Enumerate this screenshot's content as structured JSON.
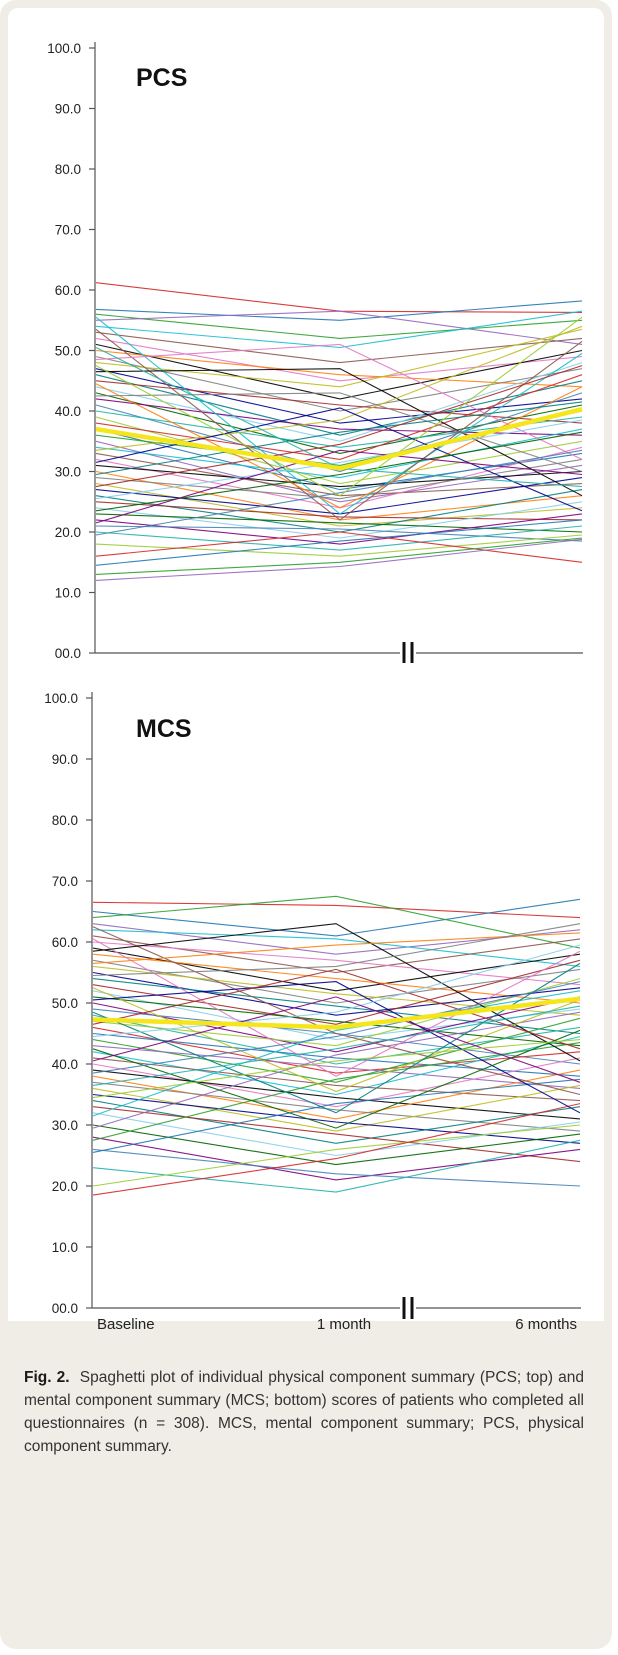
{
  "chart_data": [
    {
      "type": "line",
      "title": "PCS",
      "xlabel": "",
      "ylabel": "",
      "categories": [
        "Baseline",
        "1 month",
        "6 months"
      ],
      "ylim": [
        0,
        100
      ],
      "yticks": [
        "00.0",
        "10.0",
        "20.0",
        "30.0",
        "40.0",
        "50.0",
        "60.0",
        "70.0",
        "80.0",
        "90.0",
        "100.0"
      ],
      "grid": false,
      "axis_break": "between 1 month and 6 months",
      "mean": {
        "values": [
          37.0,
          30.5,
          40.3
        ],
        "color": "#f5e51b"
      },
      "series": [
        {
          "values": [
            61.2,
            56.5,
            56.3
          ]
        },
        {
          "values": [
            56.8,
            55.0,
            58.2
          ]
        },
        {
          "values": [
            56.0,
            52.0,
            55.0
          ]
        },
        {
          "values": [
            55.0,
            56.5,
            51.0
          ]
        },
        {
          "values": [
            54.0,
            50.5,
            56.5
          ]
        },
        {
          "values": [
            53.0,
            48.0,
            52.0
          ]
        },
        {
          "values": [
            52.0,
            45.0,
            49.0
          ]
        },
        {
          "values": [
            51.0,
            42.0,
            50.0
          ]
        },
        {
          "values": [
            50.0,
            46.0,
            44.0
          ]
        },
        {
          "values": [
            49.0,
            40.0,
            47.0
          ]
        },
        {
          "values": [
            48.0,
            44.0,
            53.5
          ]
        },
        {
          "values": [
            47.0,
            38.0,
            42.0
          ]
        },
        {
          "values": [
            46.0,
            36.0,
            45.0
          ]
        },
        {
          "values": [
            45.0,
            41.0,
            38.0
          ]
        },
        {
          "values": [
            44.0,
            35.0,
            48.0
          ]
        },
        {
          "values": [
            43.0,
            33.0,
            41.0
          ]
        },
        {
          "values": [
            42.0,
            37.0,
            36.0
          ]
        },
        {
          "values": [
            41.0,
            30.0,
            43.0
          ]
        },
        {
          "values": [
            40.0,
            34.0,
            39.0
          ]
        },
        {
          "values": [
            39.0,
            28.0,
            35.0
          ]
        },
        {
          "values": [
            38.0,
            32.0,
            46.0
          ]
        },
        {
          "values": [
            37.0,
            27.0,
            33.0
          ]
        },
        {
          "values": [
            36.0,
            31.0,
            40.0
          ]
        },
        {
          "values": [
            35.0,
            25.0,
            31.0
          ]
        },
        {
          "values": [
            34.0,
            29.0,
            37.0
          ]
        },
        {
          "values": [
            33.0,
            26.0,
            28.0
          ]
        },
        {
          "values": [
            32.0,
            24.0,
            34.0
          ]
        },
        {
          "values": [
            31.0,
            27.5,
            30.0
          ]
        },
        {
          "values": [
            30.0,
            22.0,
            26.0
          ]
        },
        {
          "values": [
            29.0,
            25.5,
            32.0
          ]
        },
        {
          "values": [
            28.0,
            21.0,
            24.0
          ]
        },
        {
          "values": [
            27.0,
            23.0,
            29.0
          ]
        },
        {
          "values": [
            26.0,
            20.0,
            27.0
          ]
        },
        {
          "values": [
            25.0,
            22.5,
            22.0
          ]
        },
        {
          "values": [
            24.0,
            19.0,
            25.0
          ]
        },
        {
          "values": [
            23.0,
            21.5,
            20.0
          ]
        },
        {
          "values": [
            22.0,
            18.0,
            23.0
          ]
        },
        {
          "values": [
            21.0,
            20.5,
            18.5
          ]
        },
        {
          "values": [
            20.0,
            17.0,
            21.0
          ]
        },
        {
          "values": [
            18.0,
            16.0,
            19.5
          ]
        },
        {
          "values": [
            16.0,
            20.0,
            15.0
          ]
        },
        {
          "values": [
            14.5,
            18.5,
            22.0
          ]
        },
        {
          "values": [
            13.0,
            15.0,
            19.0
          ]
        },
        {
          "values": [
            12.0,
            14.3,
            18.8
          ]
        },
        {
          "values": [
            55.5,
            23.0,
            49.5
          ]
        },
        {
          "values": [
            53.5,
            22.0,
            51.5
          ]
        },
        {
          "values": [
            48.5,
            51.0,
            32.0
          ]
        },
        {
          "values": [
            46.5,
            47.0,
            26.0
          ]
        },
        {
          "values": [
            44.5,
            24.0,
            44.0
          ]
        },
        {
          "values": [
            42.5,
            43.0,
            30.0
          ]
        },
        {
          "values": [
            33.5,
            38.5,
            54.0
          ]
        },
        {
          "values": [
            31.5,
            40.5,
            23.5
          ]
        },
        {
          "values": [
            29.5,
            36.5,
            41.5
          ]
        },
        {
          "values": [
            27.5,
            34.5,
            47.5
          ]
        },
        {
          "values": [
            25.5,
            31.5,
            38.5
          ]
        },
        {
          "values": [
            23.5,
            29.5,
            36.5
          ]
        },
        {
          "values": [
            21.5,
            33.5,
            29.5
          ]
        },
        {
          "values": [
            19.5,
            26.5,
            33.5
          ]
        },
        {
          "values": [
            50.5,
            30.5,
            27.5
          ]
        },
        {
          "values": [
            47.5,
            26.0,
            55.5
          ]
        }
      ]
    },
    {
      "type": "line",
      "title": "MCS",
      "xlabel": "",
      "ylabel": "",
      "categories": [
        "Baseline",
        "1 month",
        "6 months"
      ],
      "ylim": [
        0,
        100
      ],
      "yticks": [
        "00.0",
        "10.0",
        "20.0",
        "30.0",
        "40.0",
        "50.0",
        "60.0",
        "70.0",
        "80.0",
        "90.0",
        "100.0"
      ],
      "grid": false,
      "axis_break": "between 1 month and 6 months",
      "mean": {
        "values": [
          47.3,
          46.0,
          50.7
        ],
        "color": "#f5e51b"
      },
      "series": [
        {
          "values": [
            66.5,
            66.0,
            64.0
          ]
        },
        {
          "values": [
            65.0,
            61.0,
            67.0
          ]
        },
        {
          "values": [
            64.0,
            67.5,
            59.0
          ]
        },
        {
          "values": [
            63.0,
            58.0,
            62.0
          ]
        },
        {
          "values": [
            62.0,
            60.5,
            56.0
          ]
        },
        {
          "values": [
            61.0,
            55.0,
            60.5
          ]
        },
        {
          "values": [
            60.0,
            57.0,
            53.0
          ]
        },
        {
          "values": [
            59.0,
            52.0,
            58.0
          ]
        },
        {
          "values": [
            58.0,
            54.0,
            50.0
          ]
        },
        {
          "values": [
            57.0,
            50.0,
            55.5
          ]
        },
        {
          "values": [
            56.0,
            51.5,
            48.0
          ]
        },
        {
          "values": [
            55.0,
            48.0,
            52.5
          ]
        },
        {
          "values": [
            54.0,
            49.5,
            45.0
          ]
        },
        {
          "values": [
            53.0,
            46.5,
            57.0
          ]
        },
        {
          "values": [
            52.0,
            44.0,
            49.0
          ]
        },
        {
          "values": [
            51.0,
            47.0,
            43.0
          ]
        },
        {
          "values": [
            50.0,
            42.0,
            51.0
          ]
        },
        {
          "values": [
            49.0,
            45.0,
            40.0
          ]
        },
        {
          "values": [
            48.0,
            40.0,
            46.0
          ]
        },
        {
          "values": [
            47.0,
            43.0,
            54.0
          ]
        },
        {
          "values": [
            46.0,
            38.5,
            42.0
          ]
        },
        {
          "values": [
            45.0,
            41.0,
            38.0
          ]
        },
        {
          "values": [
            44.0,
            37.0,
            47.5
          ]
        },
        {
          "values": [
            43.0,
            39.5,
            36.0
          ]
        },
        {
          "values": [
            42.0,
            35.0,
            44.5
          ]
        },
        {
          "values": [
            41.0,
            36.5,
            34.0
          ]
        },
        {
          "values": [
            40.0,
            33.0,
            41.0
          ]
        },
        {
          "values": [
            39.0,
            34.5,
            31.0
          ]
        },
        {
          "values": [
            38.0,
            31.0,
            39.0
          ]
        },
        {
          "values": [
            37.0,
            32.5,
            29.0
          ]
        },
        {
          "values": [
            36.0,
            29.0,
            36.5
          ]
        },
        {
          "values": [
            35.0,
            30.5,
            27.0
          ]
        },
        {
          "values": [
            34.0,
            27.0,
            33.0
          ]
        },
        {
          "values": [
            33.0,
            28.5,
            24.0
          ]
        },
        {
          "values": [
            32.0,
            25.0,
            30.5
          ]
        },
        {
          "values": [
            30.0,
            23.5,
            28.5
          ]
        },
        {
          "values": [
            28.0,
            21.0,
            26.0
          ]
        },
        {
          "values": [
            26.0,
            22.0,
            20.0
          ]
        },
        {
          "values": [
            23.0,
            19.0,
            27.5
          ]
        },
        {
          "values": [
            20.0,
            26.0,
            30.0
          ]
        },
        {
          "values": [
            18.5,
            24.5,
            33.5
          ]
        },
        {
          "values": [
            25.5,
            33.5,
            37.5
          ]
        },
        {
          "values": [
            27.5,
            37.5,
            43.5
          ]
        },
        {
          "values": [
            29.5,
            41.5,
            48.5
          ]
        },
        {
          "values": [
            31.5,
            45.5,
            52.0
          ]
        },
        {
          "values": [
            62.5,
            45.0,
            35.0
          ]
        },
        {
          "values": [
            60.5,
            38.0,
            58.5
          ]
        },
        {
          "values": [
            58.5,
            63.0,
            40.5
          ]
        },
        {
          "values": [
            56.5,
            59.5,
            61.5
          ]
        },
        {
          "values": [
            54.5,
            56.0,
            63.0
          ]
        },
        {
          "values": [
            52.5,
            35.5,
            50.5
          ]
        },
        {
          "values": [
            50.5,
            53.5,
            32.0
          ]
        },
        {
          "values": [
            48.5,
            32.0,
            56.5
          ]
        },
        {
          "values": [
            46.5,
            55.5,
            42.5
          ]
        },
        {
          "values": [
            44.5,
            48.5,
            59.5
          ]
        },
        {
          "values": [
            42.5,
            29.5,
            45.5
          ]
        },
        {
          "values": [
            40.5,
            51.0,
            37.0
          ]
        },
        {
          "values": [
            38.5,
            44.5,
            53.5
          ]
        },
        {
          "values": [
            36.5,
            42.5,
            49.5
          ]
        },
        {
          "values": [
            34.5,
            40.5,
            44.0
          ]
        }
      ]
    }
  ],
  "caption": {
    "label": "Fig. 2.",
    "text": "Spaghetti plot of individual physical component summary (PCS; top) and mental component summary (MCS; bottom) scores of patients who completed all questionnaires (n = 308). MCS, mental component summary; PCS, physical component summary."
  },
  "colors": {
    "background": "#efede6",
    "mean_line": "#f5e51b",
    "palette": [
      "#d62728",
      "#1f77b4",
      "#2ca02c",
      "#9467bd",
      "#17becf",
      "#8c564b",
      "#e377c2",
      "#000000",
      "#ff7f0e",
      "#7f7f7f",
      "#bcbd22",
      "#00008b",
      "#008080",
      "#a52a2a",
      "#87ceeb",
      "#006400",
      "#800080",
      "#4682b4",
      "#20b2aa",
      "#9acd32"
    ]
  }
}
